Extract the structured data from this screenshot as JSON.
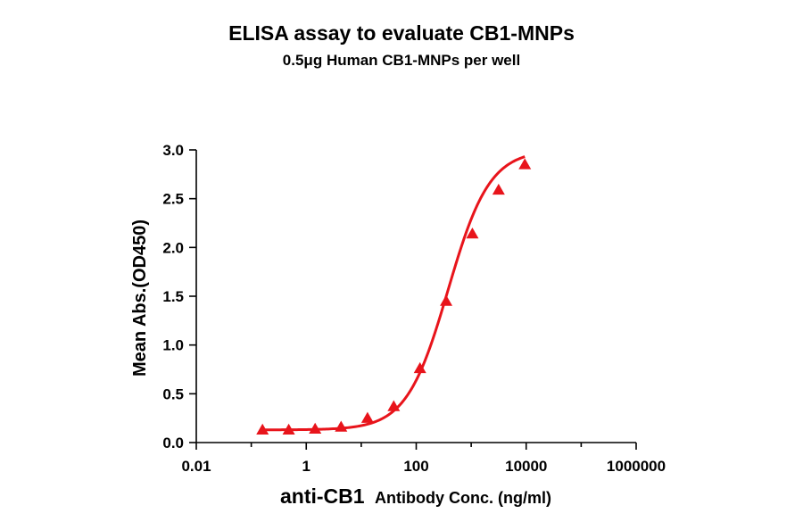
{
  "chart_data": {
    "type": "line",
    "title": "ELISA assay to evaluate CB1-MNPs",
    "subtitle": "0.5μg Human CB1-MNPs per well",
    "xlabel_main": "anti-CB1",
    "xlabel_rest": "Antibody Conc. (ng/ml)",
    "ylabel": "Mean Abs.(OD450)",
    "x_scale": "log",
    "xlim": [
      0.01,
      1000000
    ],
    "ylim": [
      0,
      3.0
    ],
    "x_ticks": [
      0.01,
      1,
      100,
      10000,
      1000000
    ],
    "x_tick_labels": [
      "0.01",
      "1",
      "100",
      "10000",
      "1000000"
    ],
    "y_ticks": [
      0,
      0.5,
      1.0,
      1.5,
      2.0,
      2.5,
      3.0
    ],
    "y_tick_labels": [
      "0.0",
      "0.5",
      "1.0",
      "1.5",
      "2.0",
      "2.5",
      "3.0"
    ],
    "grid": false,
    "legend": "none",
    "color": "#e8141b",
    "series": [
      {
        "marker": "triangle",
        "x": [
          0.16,
          0.48,
          1.45,
          4.3,
          13,
          39,
          117,
          350,
          1050,
          3150,
          9450
        ],
        "y": [
          0.13,
          0.13,
          0.14,
          0.16,
          0.25,
          0.37,
          0.76,
          1.45,
          2.14,
          2.59,
          2.85
        ]
      }
    ],
    "fit_curve": {
      "type": "4PL",
      "bottom": 0.13,
      "top": 3.0,
      "ec50": 380,
      "hill": 1.15,
      "x_range": [
        0.16,
        9450
      ]
    }
  }
}
